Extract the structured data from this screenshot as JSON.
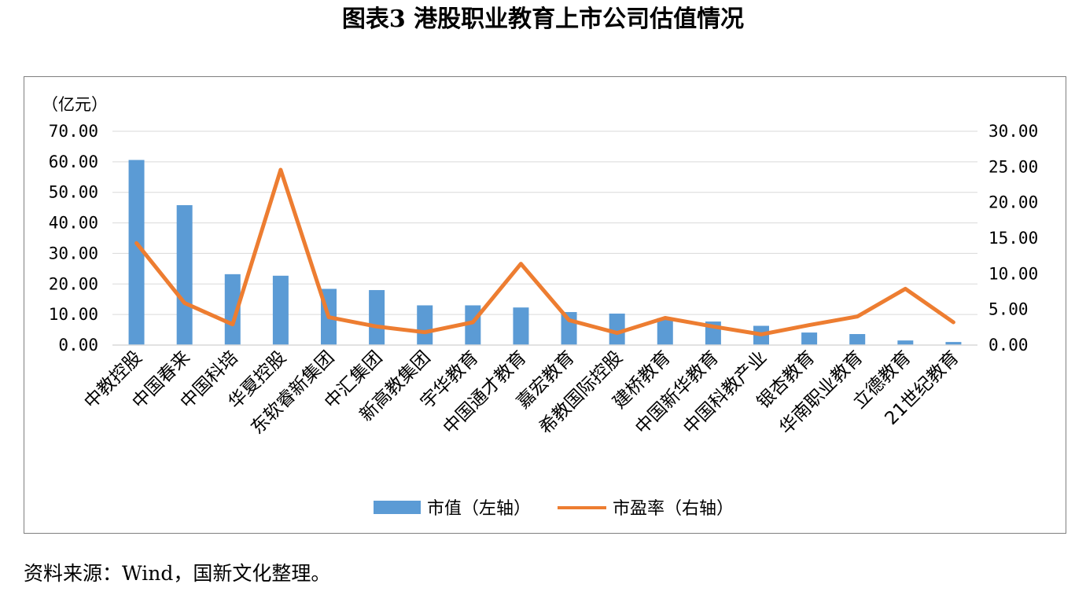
{
  "figure_title": "图表3 港股职业教育上市公司估值情况",
  "source_note": "资料来源：Wind，国新文化整理。",
  "colors": {
    "bars": "#5b9bd5",
    "line": "#ed7d31",
    "grid": "#d9d9d9",
    "frame": "#7f7f7f"
  },
  "chart_data": {
    "type": "bar",
    "title": "",
    "y_unit_label": "（亿元）",
    "ylim": [
      0,
      70
    ],
    "y2lim": [
      0,
      30
    ],
    "y_ticks": [
      "0.00",
      "10.00",
      "20.00",
      "30.00",
      "40.00",
      "50.00",
      "60.00",
      "70.00"
    ],
    "y2_ticks": [
      "0.00",
      "5.00",
      "10.00",
      "15.00",
      "20.00",
      "25.00",
      "30.00"
    ],
    "grid": true,
    "legend_position": "bottom",
    "categories": [
      "中教控股",
      "中国春来",
      "中国科培",
      "华夏控股",
      "东软睿新集团",
      "中汇集团",
      "新高教集团",
      "宇华教育",
      "中国通才教育",
      "嘉宏教育",
      "希教国际控股",
      "建桥教育",
      "中国新华教育",
      "中国科教产业",
      "银杏教育",
      "华南职业教育",
      "立德教育",
      "21世纪教育"
    ],
    "series": [
      {
        "name": "市值（左轴）",
        "type": "bar",
        "axis": "left",
        "values": [
          60.6,
          45.8,
          23.2,
          22.7,
          18.4,
          18.0,
          13.0,
          13.0,
          12.3,
          10.8,
          10.3,
          8.8,
          7.7,
          6.3,
          4.1,
          3.6,
          1.5,
          1.0
        ]
      },
      {
        "name": "市盈率（右轴）",
        "type": "line",
        "axis": "right",
        "values": [
          14.3,
          5.9,
          2.9,
          24.6,
          3.9,
          2.6,
          1.8,
          3.2,
          11.4,
          3.5,
          1.7,
          3.8,
          2.6,
          1.5,
          2.8,
          4.0,
          7.9,
          3.2
        ]
      }
    ]
  }
}
